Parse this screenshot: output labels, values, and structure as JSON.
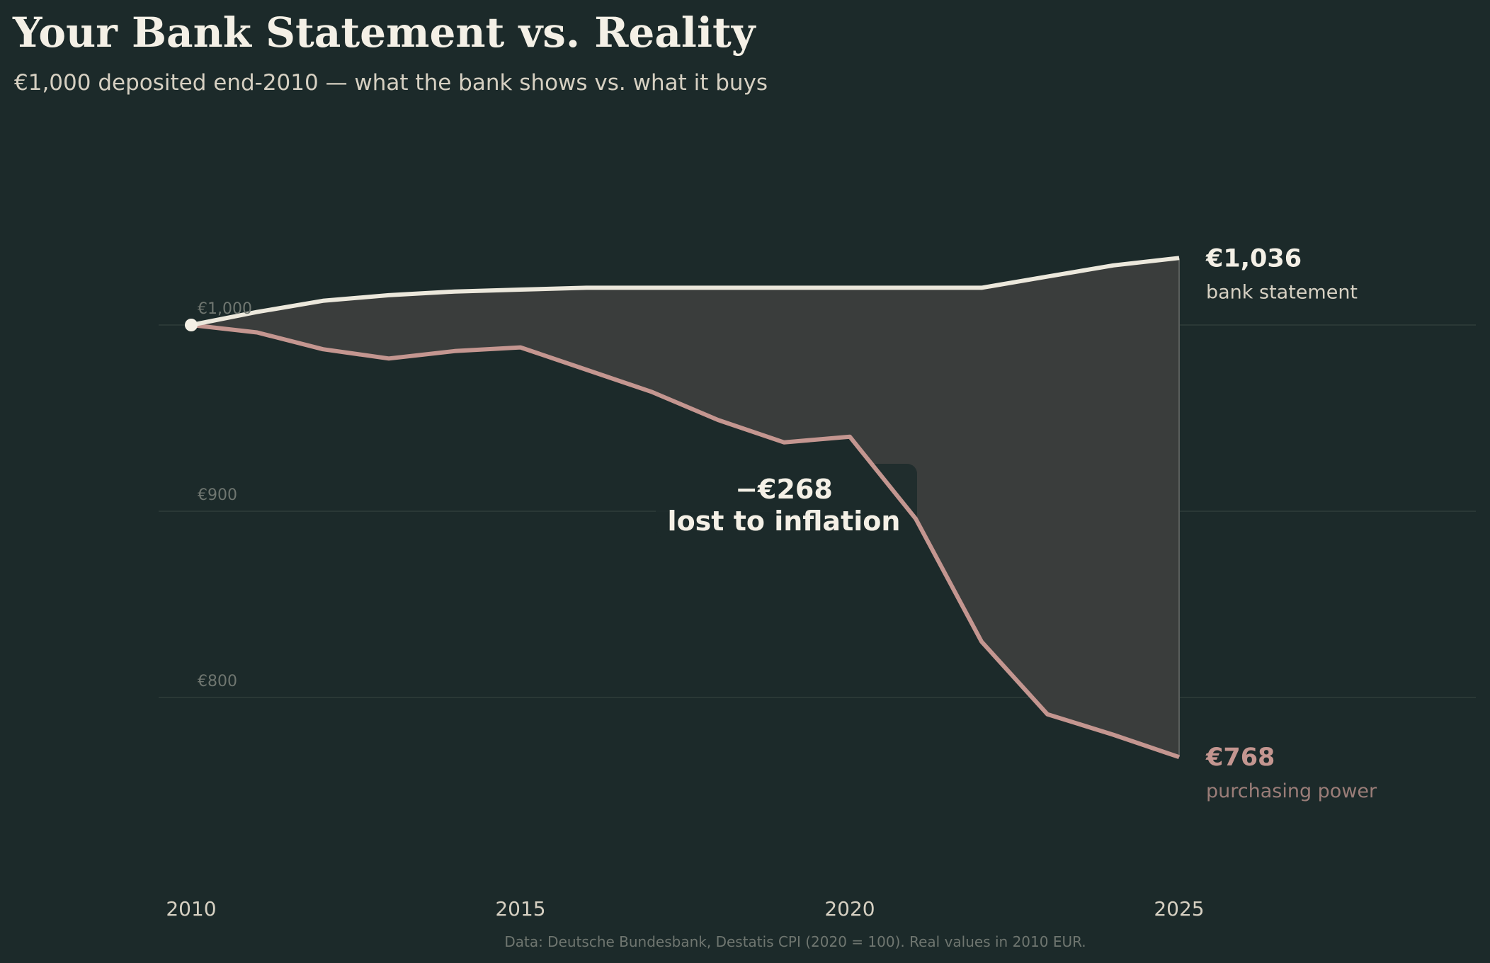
{
  "chart_data": {
    "type": "line",
    "title": "Your Bank Statement vs. Reality",
    "subtitle": "€1,000 deposited end-2010 — what the bank shows vs. what it buys",
    "x": [
      2010,
      2011,
      2012,
      2013,
      2014,
      2015,
      2016,
      2017,
      2018,
      2019,
      2020,
      2021,
      2022,
      2023,
      2024,
      2025
    ],
    "series": [
      {
        "name": "bank statement",
        "color": "#ece8dc",
        "values": [
          1000,
          1007,
          1013,
          1016,
          1018,
          1019,
          1020,
          1020,
          1020,
          1020,
          1020,
          1020,
          1020,
          1026,
          1032,
          1036
        ]
      },
      {
        "name": "purchasing power",
        "color": "#c49690",
        "values": [
          1000,
          996,
          987,
          982,
          986,
          988,
          976,
          964,
          949,
          937,
          940,
          896,
          830,
          791,
          780,
          768
        ]
      }
    ],
    "ylim": [
      700,
      1100
    ],
    "xlim": [
      2010,
      2029
    ],
    "yticks": [
      {
        "value": 1000,
        "label": "€1,000"
      },
      {
        "value": 900,
        "label": "€900"
      },
      {
        "value": 800,
        "label": "€800"
      }
    ],
    "xticks": [
      {
        "value": 2010,
        "label": "2010"
      },
      {
        "value": 2015,
        "label": "2015"
      },
      {
        "value": 2020,
        "label": "2020"
      },
      {
        "value": 2025,
        "label": "2025"
      }
    ],
    "grid": "horizontal",
    "end_labels": {
      "bank": {
        "value": "€1,036",
        "label": "bank statement"
      },
      "real": {
        "value": "€768",
        "label": "purchasing power"
      }
    },
    "annotation": {
      "line1": "−€268",
      "line2": "lost to inflation"
    },
    "source": "Data: Deutsche Bundesbank, Destatis CPI (2020 = 100).  Real values in 2010 EUR.",
    "colors": {
      "background": "#1c2a2a",
      "gap_fill": "#3a3d3c",
      "bank": "#ece8dc",
      "real": "#c49690"
    }
  }
}
